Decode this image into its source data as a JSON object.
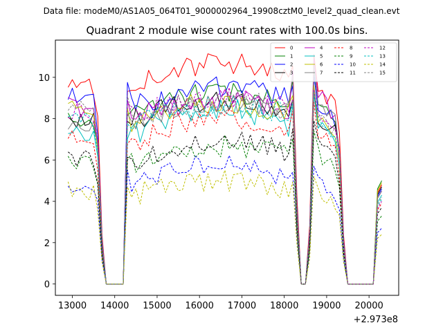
{
  "figure": {
    "suptitle": "Data file: modeM0/AS1A05_064T01_9000002964_19908cztM0_level2_quad_clean.evt",
    "offset_text": "+2.973e8"
  },
  "chart_data": {
    "type": "line",
    "title": "Quadrant 2 module wise count rates with 100.0s bins.",
    "xlabel": "",
    "ylabel": "",
    "x_offset": 297300000,
    "xlim": [
      12600,
      20700
    ],
    "ylim": [
      -0.55,
      11.8
    ],
    "xticks": [
      13000,
      14000,
      15000,
      16000,
      17000,
      18000,
      19000,
      20000
    ],
    "yticks": [
      0,
      2,
      4,
      6,
      8,
      10
    ],
    "xtick_labels": [
      "13000",
      "14000",
      "15000",
      "16000",
      "17000",
      "18000",
      "19000",
      "20000"
    ],
    "ytick_labels": [
      "0",
      "2",
      "4",
      "6",
      "8",
      "10"
    ],
    "legend_position": "upper right",
    "series": [
      {
        "name": "0",
        "color": "#ff0000",
        "dash": "solid",
        "base": 9.4,
        "trend": 1.1,
        "start": 9.6,
        "peak": 11.1,
        "end": 4.8
      },
      {
        "name": "1",
        "color": "#008000",
        "dash": "solid",
        "base": 8.1,
        "trend": 1.0,
        "start": 8.0,
        "peak": 10.4,
        "end": 5.0
      },
      {
        "name": "2",
        "color": "#0000ff",
        "dash": "solid",
        "base": 8.4,
        "trend": 1.0,
        "start": 9.2,
        "peak": 10.1,
        "end": 4.6
      },
      {
        "name": "3",
        "color": "#000000",
        "dash": "solid",
        "base": 7.9,
        "trend": 0.7,
        "start": 8.0,
        "peak": 9.4,
        "end": 4.7
      },
      {
        "name": "4",
        "color": "#bf00bf",
        "dash": "solid",
        "base": 7.9,
        "trend": 0.8,
        "start": 8.6,
        "peak": 10.9,
        "end": 4.5
      },
      {
        "name": "5",
        "color": "#00bfbf",
        "dash": "solid",
        "base": 7.1,
        "trend": 1.2,
        "start": 7.4,
        "peak": 9.2,
        "end": 4.3
      },
      {
        "name": "6",
        "color": "#bfbf00",
        "dash": "solid",
        "base": 7.7,
        "trend": 0.9,
        "start": 8.5,
        "peak": 9.6,
        "end": 4.9
      },
      {
        "name": "7",
        "color": "#808080",
        "dash": "solid",
        "base": 7.9,
        "trend": 0.6,
        "start": 7.8,
        "peak": 10.6,
        "end": 4.5
      },
      {
        "name": "8",
        "color": "#ff0000",
        "dash": "dashed",
        "base": 6.7,
        "trend": 1.2,
        "start": 7.0,
        "peak": 8.8,
        "end": 3.9
      },
      {
        "name": "9",
        "color": "#008000",
        "dash": "dashed",
        "base": 5.7,
        "trend": 0.8,
        "start": 5.8,
        "peak": 7.4,
        "end": 3.3
      },
      {
        "name": "10",
        "color": "#0000ff",
        "dash": "dashed",
        "base": 4.6,
        "trend": 1.0,
        "start": 4.9,
        "peak": 5.7,
        "end": 2.7
      },
      {
        "name": "11",
        "color": "#000000",
        "dash": "dashed",
        "base": 5.9,
        "trend": 0.8,
        "start": 6.2,
        "peak": 7.9,
        "end": 3.7
      },
      {
        "name": "12",
        "color": "#bf00bf",
        "dash": "dashed",
        "base": 8.1,
        "trend": 0.7,
        "start": 8.4,
        "peak": 9.4,
        "end": 4.0
      },
      {
        "name": "13",
        "color": "#00bfbf",
        "dash": "dashed",
        "base": 7.8,
        "trend": 0.6,
        "start": 8.1,
        "peak": 9.3,
        "end": 4.1
      },
      {
        "name": "14",
        "color": "#bfbf00",
        "dash": "dashed",
        "base": 4.2,
        "trend": 0.6,
        "start": 4.6,
        "peak": 5.2,
        "end": 2.4
      },
      {
        "name": "15",
        "color": "#808080",
        "dash": "dashed",
        "base": 7.9,
        "trend": 0.8,
        "start": 8.6,
        "peak": 9.3,
        "end": 4.2
      }
    ]
  }
}
